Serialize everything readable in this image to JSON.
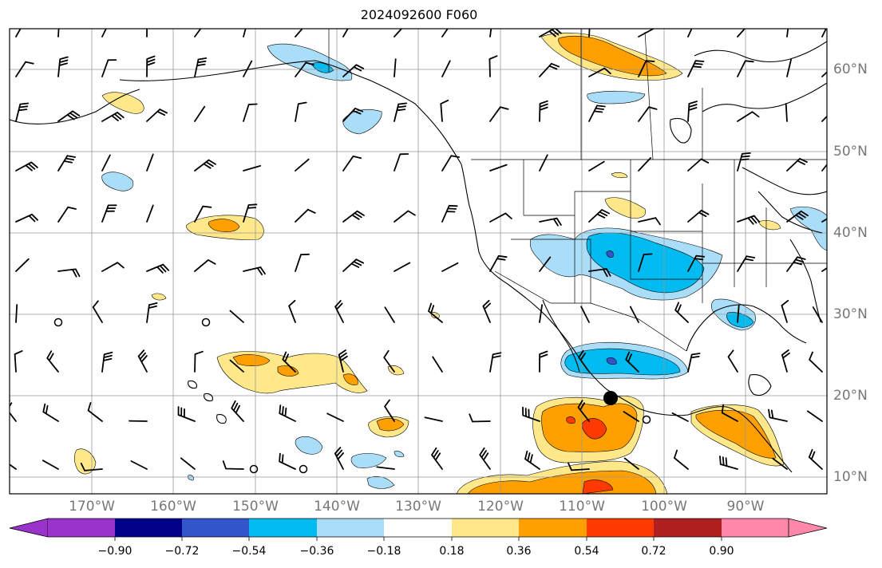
{
  "title": "2024092600 F060",
  "lon_labels": [
    "170°W",
    "160°W",
    "150°W",
    "140°W",
    "130°W",
    "120°W",
    "110°W",
    "100°W",
    "90°W"
  ],
  "lat_labels": [
    "60°N",
    "50°N",
    "40°N",
    "30°N",
    "20°N",
    "10°N"
  ],
  "colorbar": {
    "ticks": [
      "−0.90",
      "−0.72",
      "−0.54",
      "−0.36",
      "−0.18",
      "0.18",
      "0.36",
      "0.54",
      "0.72",
      "0.90"
    ],
    "colors": [
      "#9933cc",
      "#000088",
      "#3355cc",
      "#00bbf0",
      "#aaddf8",
      "#ffffff",
      "#ffe88a",
      "#ffa000",
      "#ff3a00",
      "#b02020",
      "#ff88aa"
    ]
  },
  "fill_colors": {
    "neg_036": "#aaddf8",
    "neg_054": "#00bbf0",
    "neg_072": "#3355cc",
    "pos_018": "#ffe88a",
    "pos_036": "#ffa000",
    "pos_054": "#ff3a00"
  },
  "marker": {
    "type": "storm-center",
    "lon": -105.3,
    "lat": 19.7
  }
}
